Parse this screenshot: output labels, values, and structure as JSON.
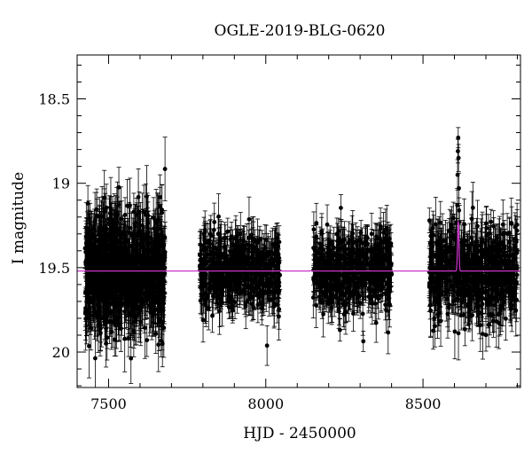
{
  "chart_data": {
    "type": "scatter",
    "title": "OGLE-2019-BLG-0620",
    "xlabel": "HJD - 2450000",
    "ylabel": "I magnitude",
    "xlim": [
      7400,
      8810
    ],
    "ylim": [
      20.21,
      18.24
    ],
    "y_inverted": true,
    "x_ticks": [
      7500,
      8000,
      8500
    ],
    "y_ticks": [
      18.5,
      19,
      19.5,
      20
    ],
    "x_tick_labels": [
      "7500",
      "8000",
      "8500"
    ],
    "y_tick_labels": [
      "18.5",
      "19",
      "19.5",
      "20"
    ],
    "grid": false,
    "legend": "none",
    "series": [
      {
        "kind": "photometry",
        "seasons": [
          {
            "x_start": 7425,
            "x_end": 7680,
            "baseline": 19.52,
            "scatter": 0.3,
            "error": 0.14,
            "points": 900
          },
          {
            "x_start": 7790,
            "x_end": 8045,
            "baseline": 19.52,
            "scatter": 0.21,
            "error": 0.1,
            "points": 520
          },
          {
            "x_start": 8150,
            "x_end": 8400,
            "baseline": 19.52,
            "scatter": 0.2,
            "error": 0.1,
            "points": 520
          },
          {
            "x_start": 8520,
            "x_end": 8800,
            "baseline": 19.52,
            "scatter": 0.24,
            "error": 0.12,
            "points": 620
          }
        ],
        "peak": {
          "x": 8612,
          "y": 18.73
        },
        "color": "#000000"
      },
      {
        "kind": "model",
        "baseline": 19.52,
        "peak_x": 8612,
        "peak_y": 19.22,
        "width": 3,
        "color": "#cc33cc"
      }
    ]
  }
}
